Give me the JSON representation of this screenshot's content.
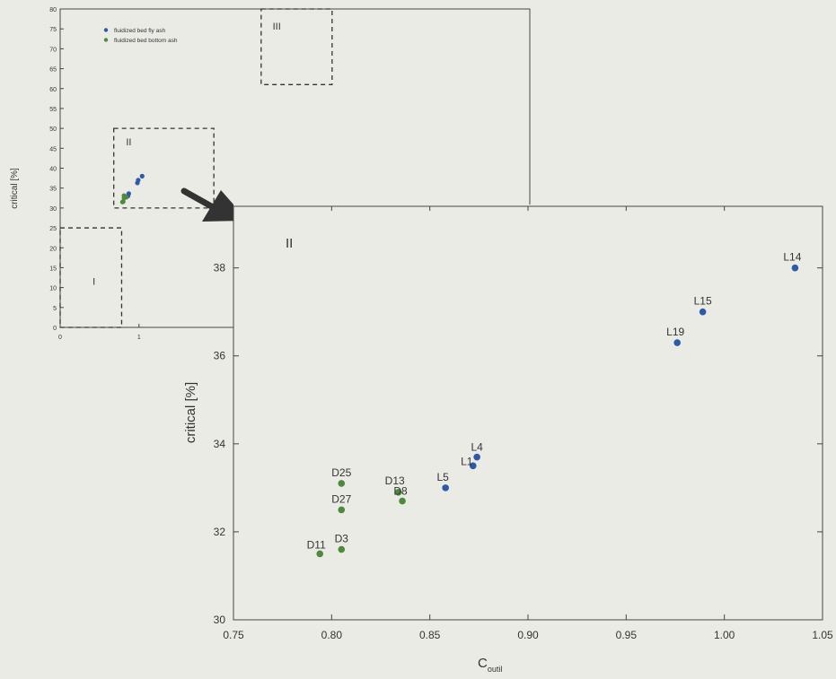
{
  "chart_data": [
    {
      "type": "scatter",
      "panel": "overview",
      "ylabel": "critical [%]",
      "xlim": [
        0,
        1.8
      ],
      "ylim": [
        0,
        80
      ],
      "yticks": [
        "0",
        "5",
        "10",
        "15",
        "20",
        "25",
        "30",
        "35",
        "40",
        "45",
        "50",
        "55",
        "60",
        "65",
        "70",
        "75",
        "80"
      ],
      "xticks": [
        "0",
        "1"
      ],
      "legend": {
        "placement": "top-left",
        "entries": [
          "fluidized bed fly ash",
          "fluidized bed bottom ash"
        ]
      },
      "regions": [
        {
          "label": "I",
          "x": [
            0.0,
            0.78
          ],
          "y": [
            0,
            25
          ]
        },
        {
          "label": "II",
          "x": [
            0.68,
            1.95
          ],
          "y": [
            30,
            50
          ]
        },
        {
          "label": "III",
          "x": [
            2.55,
            3.45
          ],
          "y": [
            61,
            80
          ]
        }
      ],
      "series": [
        {
          "name": "fluidized bed fly ash",
          "color": "#2a5aa8",
          "x": [
            0.86,
            0.87,
            0.99,
            0.98,
            1.04
          ],
          "y": [
            33.0,
            33.6,
            37.0,
            36.3,
            38.0
          ]
        },
        {
          "name": "fluidized bed bottom ash",
          "color": "#4f8a3c",
          "x": [
            0.79,
            0.81,
            0.81,
            0.84,
            0.8
          ],
          "y": [
            31.5,
            32.5,
            33.1,
            32.7,
            31.6
          ]
        }
      ]
    },
    {
      "type": "scatter",
      "panel": "zoom",
      "region_label": "II",
      "xlabel": "C",
      "xlabel_sub": "outil",
      "ylabel": "critical [%]",
      "xlim": [
        0.75,
        1.05
      ],
      "ylim": [
        30,
        39.4
      ],
      "xticks": [
        0.75,
        0.8,
        0.85,
        0.9,
        0.95,
        1.0,
        1.05
      ],
      "xtick_labels": [
        "0.75",
        "0.80",
        "0.85",
        "0.90",
        "0.95",
        "1.00",
        "1.05"
      ],
      "yticks": [
        30,
        32,
        34,
        36,
        38
      ],
      "ytick_labels": [
        "30",
        "32",
        "34",
        "36",
        "38"
      ],
      "series": [
        {
          "name": "fluidized bed fly ash",
          "color": "#2a5aa8",
          "points": [
            {
              "label": "L14",
              "x": 1.036,
              "y": 38.0
            },
            {
              "label": "L15",
              "x": 0.989,
              "y": 37.0
            },
            {
              "label": "L19",
              "x": 0.976,
              "y": 36.3
            },
            {
              "label": "L4",
              "x": 0.874,
              "y": 33.7
            },
            {
              "label": "L1",
              "x": 0.872,
              "y": 33.5
            },
            {
              "label": "L5",
              "x": 0.858,
              "y": 33.0
            }
          ]
        },
        {
          "name": "fluidized bed bottom ash",
          "color": "#4f8a3c",
          "points": [
            {
              "label": "D25",
              "x": 0.805,
              "y": 33.1
            },
            {
              "label": "D13",
              "x": 0.834,
              "y": 32.9
            },
            {
              "label": "D8",
              "x": 0.836,
              "y": 32.7
            },
            {
              "label": "D27",
              "x": 0.805,
              "y": 32.5
            },
            {
              "label": "D3",
              "x": 0.805,
              "y": 31.6
            },
            {
              "label": "D11",
              "x": 0.794,
              "y": 31.5
            }
          ]
        }
      ]
    }
  ]
}
